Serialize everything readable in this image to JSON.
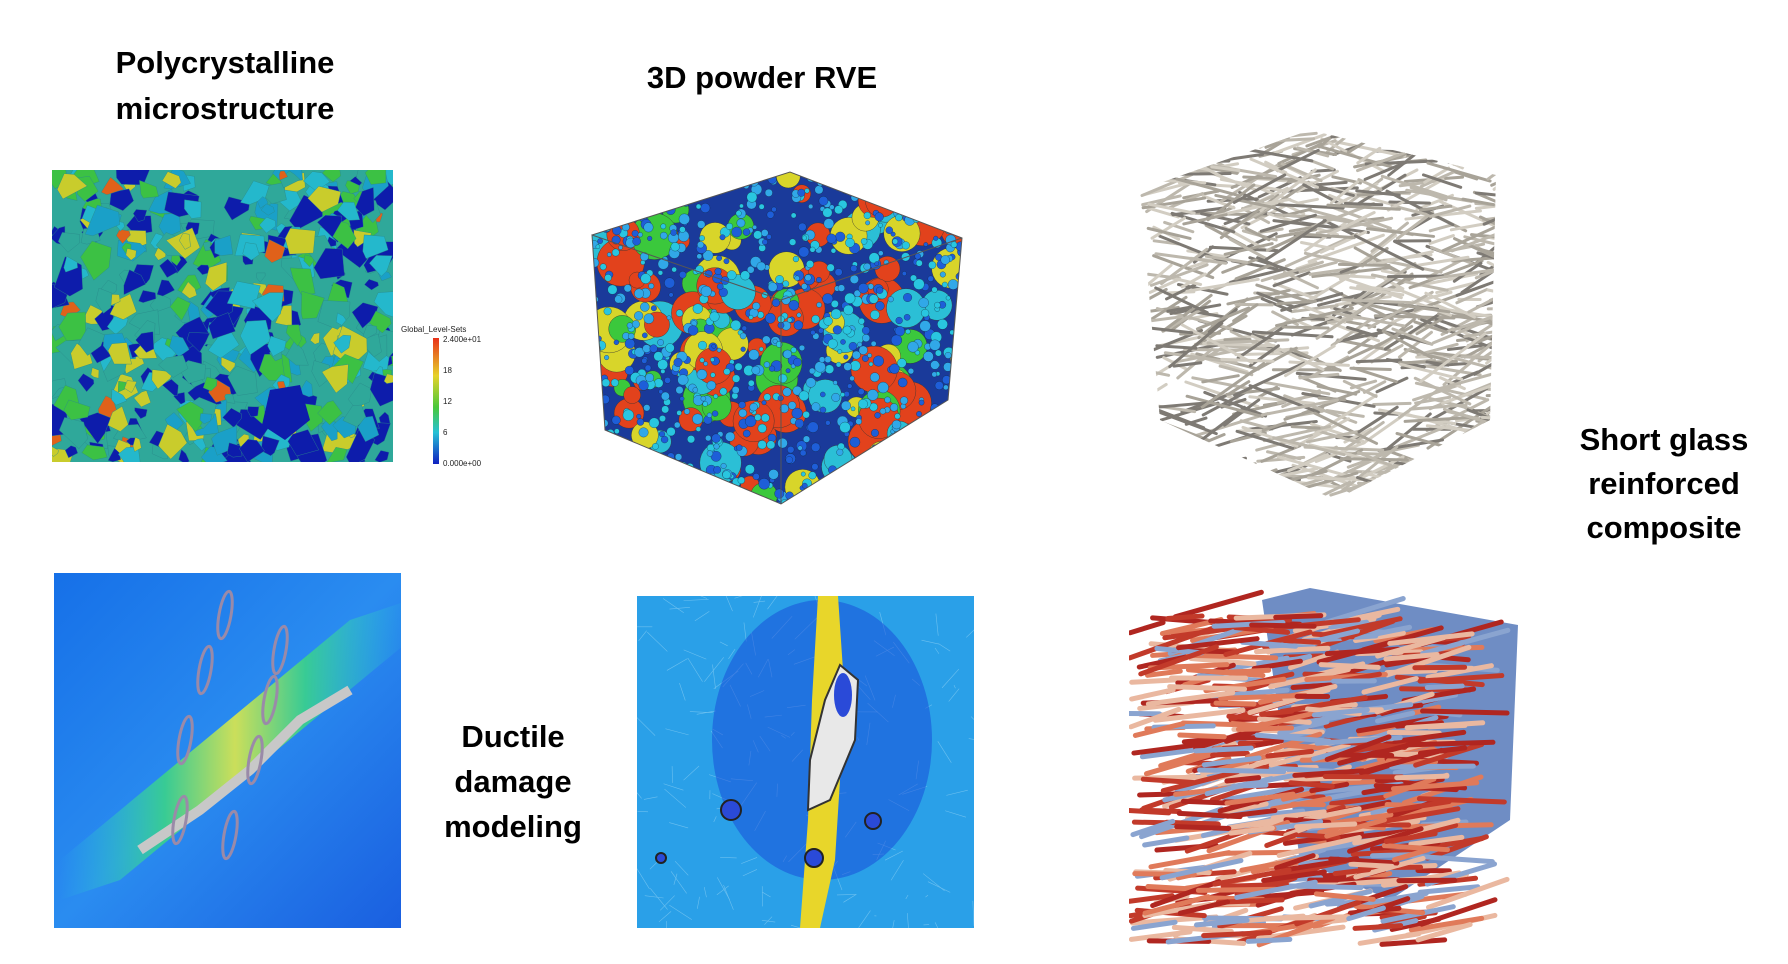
{
  "labels": {
    "polycrystal": [
      "Polycrystalline",
      "microstructure"
    ],
    "powder": [
      "3D powder RVE"
    ],
    "glass": [
      "Short glass",
      "reinforced",
      "composite"
    ],
    "ductile": [
      "Ductile",
      "damage",
      "modeling"
    ]
  },
  "colorbar": {
    "title": "Global_Level-Sets",
    "labels": [
      "2.400e+01",
      "18",
      "12",
      "6",
      "0.000e+00"
    ]
  }
}
